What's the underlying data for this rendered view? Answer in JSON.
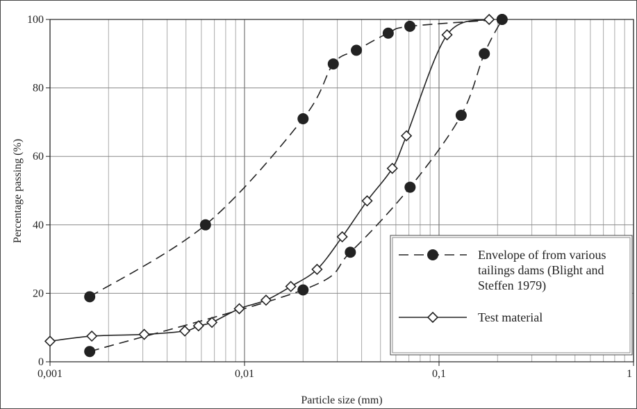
{
  "chart_data": {
    "type": "line",
    "xlabel": "Particle size (mm)",
    "ylabel": "Percentage passing (%)",
    "xscale": "log",
    "xlim": [
      0.001,
      1
    ],
    "ylim": [
      0,
      100
    ],
    "xticks": [
      {
        "value": 0.001,
        "label": "0,001"
      },
      {
        "value": 0.01,
        "label": "0,01"
      },
      {
        "value": 0.1,
        "label": "0,1"
      },
      1
    ],
    "yticks": [
      0,
      20,
      40,
      60,
      80,
      100
    ],
    "grid": true,
    "legend": "lower right",
    "series": [
      {
        "name": "Envelope of from various tailings dams (Blight and Steffen 1979)",
        "color": "#222222",
        "style": "dashed",
        "marker": "circle",
        "x": [
          0.0016,
          0.0063,
          0.02,
          0.0286,
          0.0376,
          0.0548,
          0.0708,
          0.211
        ],
        "values": [
          19,
          40,
          71,
          87,
          91,
          96,
          98,
          100
        ]
      },
      {
        "color": "#222222",
        "style": "dashed",
        "marker": "circle",
        "x": [
          0.0016,
          0.02,
          0.035,
          0.071,
          0.13,
          0.171,
          0.211
        ],
        "values": [
          3,
          21,
          32,
          51,
          72,
          90,
          100
        ]
      },
      {
        "name": "Test material",
        "color": "#222222",
        "style": "solid",
        "marker": "diamond",
        "x": [
          0.001,
          0.00164,
          0.00305,
          0.00493,
          0.0058,
          0.0068,
          0.0094,
          0.0129,
          0.0173,
          0.0236,
          0.0318,
          0.0427,
          0.0575,
          0.068,
          0.11,
          0.181
        ],
        "values": [
          6,
          7.5,
          8,
          9,
          10.5,
          11.5,
          15.5,
          18,
          22,
          27,
          36.5,
          47,
          56.5,
          66,
          95.5,
          100
        ]
      }
    ]
  }
}
